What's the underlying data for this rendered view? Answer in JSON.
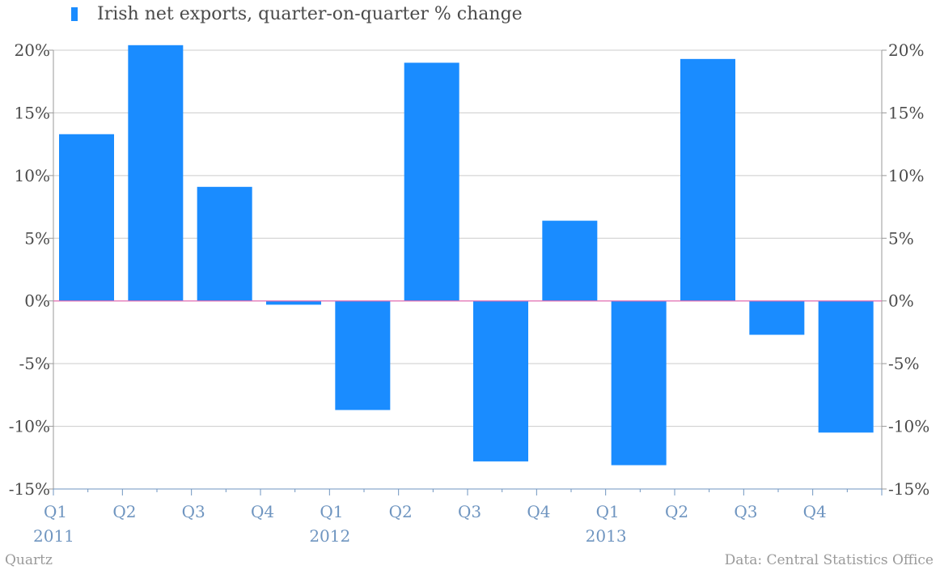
{
  "chart_data": {
    "type": "bar",
    "categories": [
      "Q1 2011",
      "Q2 2011",
      "Q3 2011",
      "Q4 2011",
      "Q1 2012",
      "Q2 2012",
      "Q3 2012",
      "Q4 2012",
      "Q1 2013",
      "Q2 2013",
      "Q3 2013",
      "Q4 2013"
    ],
    "series": [
      {
        "name": "Irish net exports, quarter-on-quarter % change",
        "values": [
          13.3,
          20.4,
          9.1,
          -0.3,
          -8.7,
          19.0,
          -12.8,
          6.4,
          -13.1,
          19.3,
          -2.7,
          -10.5
        ]
      }
    ],
    "ylim": [
      -15,
      20
    ],
    "yticks": [
      "20%",
      "15%",
      "10%",
      "5%",
      "0%",
      "-5%",
      "-10%",
      "-15%"
    ],
    "ytick_values": [
      20,
      15,
      10,
      5,
      0,
      -5,
      -10,
      -15
    ],
    "xtick_quarters": [
      "Q1",
      "Q2",
      "Q3",
      "Q4",
      "Q1",
      "Q2",
      "Q3",
      "Q4",
      "Q1",
      "Q2",
      "Q3",
      "Q4"
    ],
    "xtick_years": [
      "2011",
      "2012",
      "2013"
    ],
    "grid": true,
    "y_axis_both_sides": true,
    "legend_placement": "top-left",
    "colors": {
      "bar": "#1a8cff",
      "zero_line": "#e06bb0",
      "grid": "#cccccc",
      "axis": "#6f95c0"
    }
  },
  "legend": {
    "label": "Irish net exports, quarter-on-quarter % change"
  },
  "footer": {
    "brand": "Quartz",
    "source": "Data: Central Statistics Office"
  }
}
